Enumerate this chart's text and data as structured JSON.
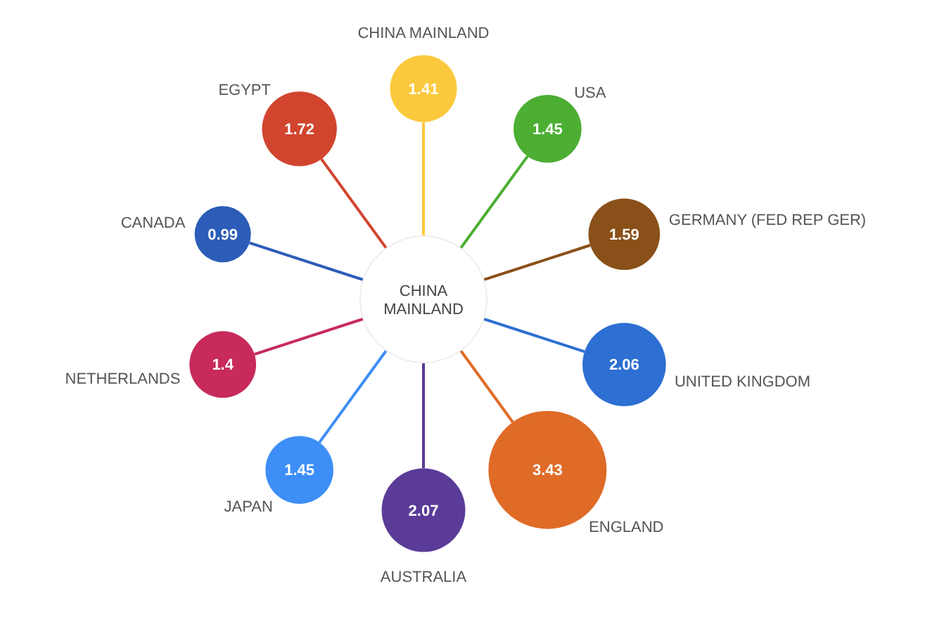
{
  "chart_data": {
    "type": "other",
    "categories": [
      "CHINA MAINLAND",
      "USA",
      "GERMANY (FED REP GER)",
      "UNITED KINGDOM",
      "ENGLAND",
      "AUSTRALIA",
      "JAPAN",
      "NETHERLANDS",
      "CANADA",
      "EGYPT"
    ],
    "values": [
      1.41,
      1.45,
      1.59,
      2.06,
      3.43,
      2.07,
      1.45,
      1.4,
      0.99,
      1.72
    ],
    "colors": [
      "#fbc93d",
      "#4cae33",
      "#8a5019",
      "#2d6fd2",
      "#df6b27",
      "#5a3b98",
      "#3d8ef6",
      "#c72a5b",
      "#2b5cb8",
      "#d1452f"
    ],
    "data_labels": true,
    "annotations": [
      "CHINA MAINLAND"
    ]
  }
}
